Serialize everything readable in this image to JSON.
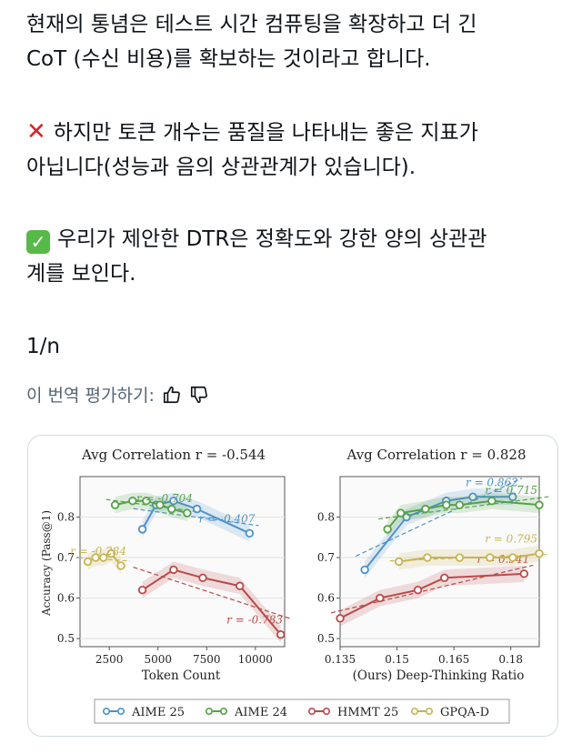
{
  "tweet": {
    "line1": "현재의 통념은 테스트 시간 컴퓨팅을 확장하고 더 긴",
    "line2": "CoT (수신 비용)를 확보하는 것이라고 합니다.",
    "con_line1": "하지만 토큰 개수는 품질을 나타내는 좋은 지표가",
    "con_line2": "아닙니다(성능과 음의 상관관계가 있습니다).",
    "pro_line1": "우리가 제안한 DTR은 정확도와 강한 양의 상관관",
    "pro_line2": "계를 보인다.",
    "page": "1/n",
    "con_icon": "cross-mark-icon",
    "pro_icon": "check-mark-button-icon"
  },
  "translate": {
    "label": "이 번역 평가하기:",
    "like_icon": "thumbs-up-icon",
    "dislike_icon": "thumbs-down-icon"
  },
  "chart_data": [
    {
      "type": "line",
      "title": "Avg Correlation r = -0.544",
      "xlabel": "Token Count",
      "ylabel": "Accuracy (Pass@1)",
      "xlim": [
        1000,
        11500
      ],
      "ylim": [
        0.48,
        0.9
      ],
      "xticks": [
        2500,
        5000,
        7500,
        10000
      ],
      "yticks": [
        0.5,
        0.6,
        0.7,
        0.8
      ],
      "series": [
        {
          "name": "AIME 25",
          "color": "#4c92c9",
          "x": [
            4200,
            4900,
            5800,
            7000,
            9700
          ],
          "y": [
            0.77,
            0.83,
            0.84,
            0.82,
            0.76
          ],
          "annotation": "r = -0.407"
        },
        {
          "name": "AIME 24",
          "color": "#55a246",
          "x": [
            2800,
            3700,
            4400,
            5100,
            5700,
            6500
          ],
          "y": [
            0.83,
            0.84,
            0.84,
            0.83,
            0.82,
            0.81
          ],
          "annotation": "r = -0.704"
        },
        {
          "name": "HMMT 25",
          "color": "#b94a48",
          "x": [
            4200,
            5800,
            7300,
            9200,
            11300
          ],
          "y": [
            0.62,
            0.67,
            0.65,
            0.63,
            0.51
          ],
          "annotation": "r = -0.783"
        },
        {
          "name": "GPQA-D",
          "color": "#c8b453",
          "x": [
            1400,
            1800,
            2200,
            2600,
            3100
          ],
          "y": [
            0.69,
            0.7,
            0.7,
            0.71,
            0.68
          ],
          "annotation": "r = -0.284"
        }
      ]
    },
    {
      "type": "line",
      "title": "Avg Correlation r = 0.828",
      "xlabel": "(Ours) Deep-Thinking Ratio",
      "ylabel": "",
      "xlim": [
        0.135,
        0.1875
      ],
      "ylim": [
        0.48,
        0.9
      ],
      "xticks": [
        0.135,
        0.15,
        0.165,
        0.18
      ],
      "yticks": [
        0.5,
        0.6,
        0.7,
        0.8
      ],
      "series": [
        {
          "name": "AIME 25",
          "color": "#4c92c9",
          "x": [
            0.1415,
            0.1525,
            0.163,
            0.17,
            0.1805
          ],
          "y": [
            0.67,
            0.8,
            0.84,
            0.85,
            0.85
          ],
          "annotation": "r = 0.862"
        },
        {
          "name": "AIME 24",
          "color": "#55a246",
          "x": [
            0.1475,
            0.151,
            0.1575,
            0.163,
            0.1665,
            0.175,
            0.1875
          ],
          "y": [
            0.77,
            0.81,
            0.82,
            0.83,
            0.83,
            0.84,
            0.83
          ],
          "annotation": "r = 0.715"
        },
        {
          "name": "HMMT 25",
          "color": "#b94a48",
          "x": [
            0.135,
            0.1455,
            0.1555,
            0.1625,
            0.1835
          ],
          "y": [
            0.55,
            0.6,
            0.62,
            0.65,
            0.66
          ],
          "annotation": "r = 0.941"
        },
        {
          "name": "GPQA-D",
          "color": "#c8b453",
          "x": [
            0.1505,
            0.158,
            0.1665,
            0.1745,
            0.1805,
            0.1875
          ],
          "y": [
            0.69,
            0.7,
            0.7,
            0.7,
            0.7,
            0.71
          ],
          "annotation": "r = 0.795"
        }
      ]
    }
  ],
  "legend": [
    "AIME 25",
    "AIME 24",
    "HMMT 25",
    "GPQA-D"
  ]
}
